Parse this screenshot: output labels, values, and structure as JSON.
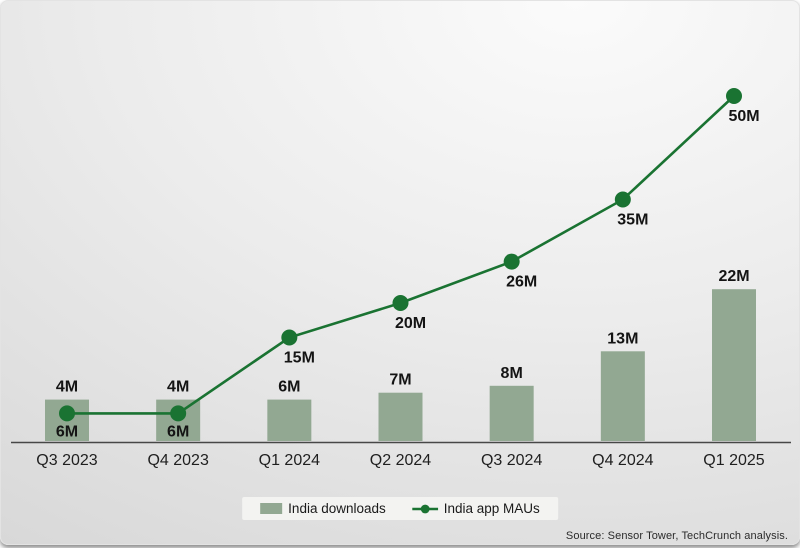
{
  "chart_data": {
    "type": "combo-bar-line",
    "categories": [
      "Q3 2023",
      "Q4 2023",
      "Q1 2024",
      "Q2 2024",
      "Q3 2024",
      "Q4 2024",
      "Q1 2025"
    ],
    "series": [
      {
        "name": "India downloads",
        "type": "bar",
        "values": [
          4,
          4,
          6,
          7,
          8,
          13,
          22
        ],
        "color": "#92a892"
      },
      {
        "name": "India app MAUs",
        "type": "line",
        "values": [
          6,
          6,
          15,
          20,
          26,
          35,
          50
        ],
        "color": "#1a7332"
      }
    ],
    "value_unit": "M",
    "ylim": [
      0,
      52
    ],
    "grid": false,
    "x_axis_line": true,
    "data_labels": true,
    "legend_position": "bottom-center"
  },
  "legend": {
    "items": [
      {
        "marker": "bar-swatch"
      },
      {
        "marker": "line-dot"
      }
    ]
  },
  "source_note": "Source: Sensor Tower, TechCrunch analysis.",
  "colors": {
    "bar": "#92a892",
    "line": "#1a7332",
    "axis_line": "#474747",
    "data_label_text": "#141414",
    "tick_text": "#1f1f1f",
    "legend_bg": "#f3f3f1",
    "legend_text": "#1a1a1a"
  }
}
